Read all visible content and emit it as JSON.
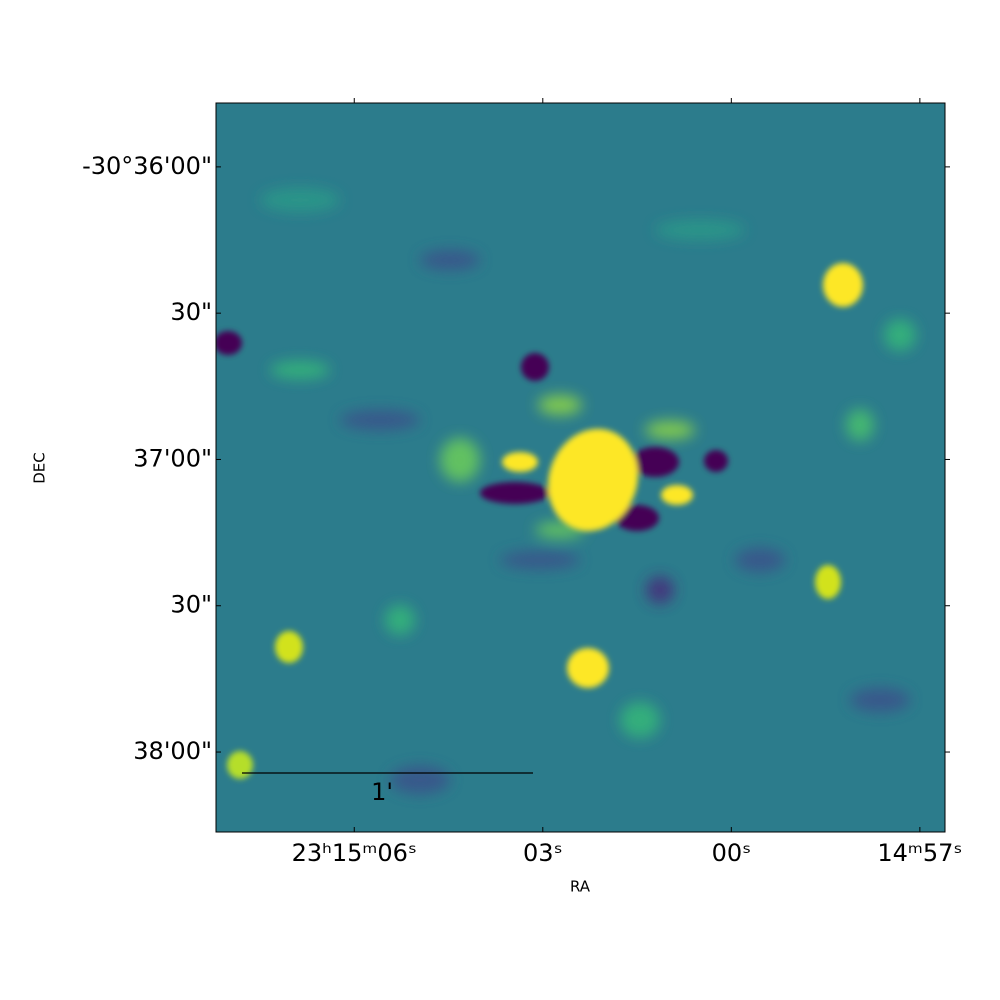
{
  "chart_data": {
    "type": "image",
    "xlabel": "RA",
    "ylabel": "DEC",
    "xlim": [
      8.2,
      -3.4
    ],
    "xticks": [
      {
        "value": 6,
        "label": "23ʰ15ᵐ06ˢ"
      },
      {
        "value": 3,
        "label": "03ˢ"
      },
      {
        "value": 0,
        "label": "00ˢ"
      },
      {
        "value": -3,
        "label": "14ᵐ57ˢ"
      }
    ],
    "ylim": [
      -76.4,
      73.1
    ],
    "yticks": [
      {
        "value": 60,
        "label": "-30°36'00\""
      },
      {
        "value": 30,
        "label": "30\""
      },
      {
        "value": 0,
        "label": "37'00\""
      },
      {
        "value": -30,
        "label": "30\""
      },
      {
        "value": -60,
        "label": "38'00\""
      }
    ],
    "scale_bar_label": "1'"
  }
}
